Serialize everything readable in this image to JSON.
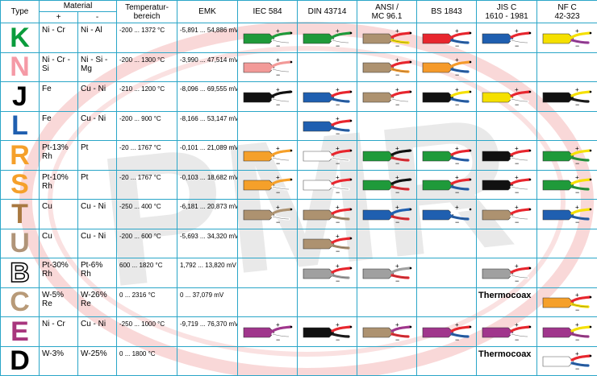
{
  "watermark": "PMR",
  "header": {
    "type": "Type",
    "material": "Material",
    "plus": "+",
    "minus": "-",
    "temp": [
      "Temperatur-",
      "bereich"
    ],
    "emk": "EMK",
    "standards": [
      [
        "IEC 584"
      ],
      [
        "DIN 43714"
      ],
      [
        "ANSI /",
        "MC 96.1"
      ],
      [
        "BS 1843"
      ],
      [
        "JIS C",
        "1610 - 1981"
      ],
      [
        "NF C",
        "42-323"
      ]
    ]
  },
  "colors": {
    "K": "#0a9c3c",
    "N": "#f59aa6",
    "J": "#000000",
    "L": "#1f5fb0",
    "R": "#f5a02a",
    "S": "#f5a02a",
    "T": "#a87840",
    "U": "#b09478",
    "B": "#ffffff",
    "C": "#b89a78",
    "E": "#a8367e",
    "D": "#000000"
  },
  "rows": [
    {
      "type": "K",
      "plus": "Ni - Cr",
      "minus": "Ni - Al",
      "range": "-200 ... 1372 °C",
      "emk": "-5,891 ... 54,886 mV",
      "plugs": [
        {
          "body": "#1f9a3a",
          "tail": "#1f9a3a",
          "tip": "#ffffff"
        },
        {
          "body": "#1f9a3a",
          "tail": "#1f9a3a",
          "tip": "#ffffff"
        },
        {
          "body": "#ad9270",
          "tail": "#e8262e",
          "tip": "#f5e000"
        },
        {
          "body": "#e8262e",
          "tail": "#e8262e",
          "tip": "#1f5fb0"
        },
        {
          "body": "#1f5fb0",
          "tail": "#e8262e",
          "tip": "#ffffff"
        },
        {
          "body": "#f5e000",
          "tail": "#f5e000",
          "tip": "#a03aa0"
        }
      ]
    },
    {
      "type": "N",
      "plus": "Ni - Cr - Si",
      "minus": "Ni - Si - Mg",
      "range": "-200 ... 1300 °C",
      "emk": "-3,990 ... 47,514 mV",
      "plugs": [
        {
          "body": "#f29a98",
          "tail": "#f29a98",
          "tip": "#ffffff"
        },
        null,
        {
          "body": "#ad9270",
          "tail": "#e8262e",
          "tip": "#f59a2a"
        },
        {
          "body": "#f59a2a",
          "tail": "#f59a2a",
          "tip": "#1f5fb0"
        },
        null,
        null
      ]
    },
    {
      "type": "J",
      "plus": "Fe",
      "minus": "Cu - Ni",
      "range": "-210 ... 1200 °C",
      "emk": "-8,096 ... 69,555 mV",
      "plugs": [
        {
          "body": "#111111",
          "tail": "#111111",
          "tip": "#ffffff"
        },
        {
          "body": "#1f5fb0",
          "tail": "#e8262e",
          "tip": "#1f5fb0"
        },
        {
          "body": "#ad9270",
          "tail": "#e8262e",
          "tip": "#ffffff"
        },
        {
          "body": "#111111",
          "tail": "#f5e000",
          "tip": "#1f5fb0"
        },
        {
          "body": "#f5e000",
          "tail": "#e8262e",
          "tip": "#ffffff"
        },
        {
          "body": "#111111",
          "tail": "#f5e000",
          "tip": "#111111"
        }
      ]
    },
    {
      "type": "L",
      "plus": "Fe",
      "minus": "Cu - Ni",
      "range": "-200 ... 900 °C",
      "emk": "-8,166 ... 53,147 mV",
      "plugs": [
        null,
        {
          "body": "#1f5fb0",
          "tail": "#e8262e",
          "tip": "#1f5fb0"
        },
        null,
        null,
        null,
        null
      ]
    },
    {
      "type": "R",
      "plus": "Pt-13% Rh",
      "minus": "Pt",
      "range": "-20 ... 1767 °C",
      "emk": "-0,101 ... 21,089 mV",
      "plugs": [
        {
          "body": "#f5a02a",
          "tail": "#f5a02a",
          "tip": "#ffffff"
        },
        {
          "body": "#ffffff",
          "tail": "#e8262e",
          "tip": "#ffffff"
        },
        {
          "body": "#1f9a3a",
          "tail": "#111111",
          "tip": "#e8262e"
        },
        {
          "body": "#1f9a3a",
          "tail": "#e8262e",
          "tip": "#1f5fb0"
        },
        {
          "body": "#111111",
          "tail": "#e8262e",
          "tip": "#ffffff"
        },
        {
          "body": "#1f9a3a",
          "tail": "#f5e000",
          "tip": "#1f9a3a"
        }
      ]
    },
    {
      "type": "S",
      "plus": "Pt-10% Rh",
      "minus": "Pt",
      "range": "-20 ... 1767 °C",
      "emk": "-0,103 ... 18,682 mV",
      "plugs": [
        {
          "body": "#f5a02a",
          "tail": "#f5a02a",
          "tip": "#ffffff"
        },
        {
          "body": "#ffffff",
          "tail": "#e8262e",
          "tip": "#ffffff"
        },
        {
          "body": "#1f9a3a",
          "tail": "#111111",
          "tip": "#e8262e"
        },
        {
          "body": "#1f9a3a",
          "tail": "#e8262e",
          "tip": "#1f5fb0"
        },
        {
          "body": "#111111",
          "tail": "#e8262e",
          "tip": "#ffffff"
        },
        {
          "body": "#1f9a3a",
          "tail": "#f5e000",
          "tip": "#1f9a3a"
        }
      ]
    },
    {
      "type": "T",
      "plus": "Cu",
      "minus": "Cu - Ni",
      "range": "-250 ... 400 °C",
      "emk": "-6,181 ... 20,873 mV",
      "plugs": [
        {
          "body": "#ad9270",
          "tail": "#ad9270",
          "tip": "#ffffff"
        },
        {
          "body": "#ad9270",
          "tail": "#e8262e",
          "tip": "#ad9270"
        },
        {
          "body": "#1f5fb0",
          "tail": "#1f5fb0",
          "tip": "#e8262e"
        },
        {
          "body": "#1f5fb0",
          "tail": "#ffffff",
          "tip": "#1f5fb0"
        },
        {
          "body": "#ad9270",
          "tail": "#e8262e",
          "tip": "#ffffff"
        },
        {
          "body": "#1f5fb0",
          "tail": "#f5e000",
          "tip": "#1f5fb0"
        }
      ]
    },
    {
      "type": "U",
      "plus": "Cu",
      "minus": "Cu - Ni",
      "range": "-200 ... 600 °C",
      "emk": "-5,693 ... 34,320 mV",
      "plugs": [
        null,
        {
          "body": "#ad9270",
          "tail": "#e8262e",
          "tip": "#ad9270"
        },
        null,
        null,
        null,
        null
      ]
    },
    {
      "type": "B",
      "plus": "Pt-30% Rh",
      "minus": "Pt-6% Rh",
      "range": "600 ... 1820 °C",
      "emk": "1,792 ... 13,820 mV",
      "plugs": [
        null,
        {
          "body": "#a0a0a0",
          "tail": "#e8262e",
          "tip": "#a0a0a0"
        },
        {
          "body": "#a0a0a0",
          "tail": "#a0a0a0",
          "tip": "#e8262e"
        },
        null,
        {
          "body": "#a0a0a0",
          "tail": "#e8262e",
          "tip": "#ffffff"
        },
        null
      ]
    },
    {
      "type": "C",
      "plus": "W-5% Re",
      "minus": "W-26% Re",
      "range": "0 ... 2316 °C",
      "emk": "0 ... 37,079 mV",
      "plugs": [
        null,
        null,
        null,
        null,
        "Thermocoax",
        {
          "body": "#f5a02a",
          "tail": "#e8262e",
          "tip": "#f5e000"
        }
      ]
    },
    {
      "type": "E",
      "plus": "Ni - Cr",
      "minus": "Cu - Ni",
      "range": "-250 ... 1000 °C",
      "emk": "-9,719 ... 76,370 mV",
      "plugs": [
        {
          "body": "#a0368c",
          "tail": "#a0368c",
          "tip": "#ffffff"
        },
        {
          "body": "#111111",
          "tail": "#e8262e",
          "tip": "#111111"
        },
        {
          "body": "#ad9270",
          "tail": "#a0368c",
          "tip": "#e8262e"
        },
        {
          "body": "#a0368c",
          "tail": "#e8262e",
          "tip": "#1f5fb0"
        },
        {
          "body": "#a0368c",
          "tail": "#e8262e",
          "tip": "#ffffff"
        },
        {
          "body": "#a0368c",
          "tail": "#f5e000",
          "tip": "#a0368c"
        }
      ]
    },
    {
      "type": "D",
      "plus": "W-3%",
      "minus": "W-25%",
      "range": "0 ... 1800 °C",
      "emk": "",
      "plugs": [
        null,
        null,
        null,
        null,
        "Thermocoax",
        {
          "body": "#ffffff",
          "tail": "#e8262e",
          "tip": "#1f5fb0"
        }
      ]
    }
  ]
}
